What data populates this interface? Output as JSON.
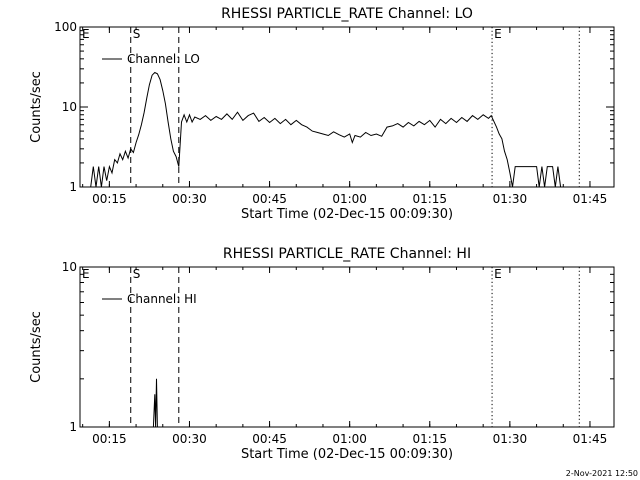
{
  "footer_timestamp": "2-Nov-2021 12:50",
  "chart_data": [
    {
      "type": "line",
      "title": "RHESSI PARTICLE_RATE Channel: LO",
      "xlabel": "Start Time (02-Dec-15 00:09:30)",
      "ylabel": "Counts/sec",
      "y_scale": "log",
      "ylim": [
        1,
        100
      ],
      "xlim": [
        "00:09:30",
        "01:49:30"
      ],
      "x_ticks": [
        "00:15",
        "00:30",
        "00:45",
        "01:00",
        "01:15",
        "01:30",
        "01:45"
      ],
      "y_ticks": [
        "1",
        "10",
        "100"
      ],
      "legend": {
        "label": "Channel: LO",
        "placement": "top-left"
      },
      "markers": [
        {
          "label": "E",
          "x": "00:09:30",
          "style": "none"
        },
        {
          "label": "S",
          "x": "00:19:00",
          "style": "dashed"
        },
        {
          "label": "",
          "x": "00:28:00",
          "style": "dashed"
        },
        {
          "label": "E",
          "x": "01:26:40",
          "style": "dotted"
        },
        {
          "label": "",
          "x": "01:43:00",
          "style": "dotted"
        }
      ],
      "series": [
        {
          "name": "Channel: LO",
          "points": [
            [
              "00:11:30",
              1
            ],
            [
              "00:12:00",
              1.8
            ],
            [
              "00:12:30",
              1
            ],
            [
              "00:13:00",
              1.8
            ],
            [
              "00:13:30",
              1
            ],
            [
              "00:14:00",
              1.8
            ],
            [
              "00:14:30",
              1.2
            ],
            [
              "00:15:00",
              1.8
            ],
            [
              "00:15:30",
              1.5
            ],
            [
              "00:16:00",
              2.2
            ],
            [
              "00:16:30",
              2
            ],
            [
              "00:17:00",
              2.6
            ],
            [
              "00:17:30",
              2.2
            ],
            [
              "00:18:00",
              2.8
            ],
            [
              "00:18:30",
              2.3
            ],
            [
              "00:19:00",
              3
            ],
            [
              "00:19:30",
              2.7
            ],
            [
              "00:20:00",
              3.6
            ],
            [
              "00:20:30",
              4.5
            ],
            [
              "00:21:00",
              6
            ],
            [
              "00:21:30",
              8.5
            ],
            [
              "00:22:00",
              13
            ],
            [
              "00:22:30",
              19
            ],
            [
              "00:23:00",
              25
            ],
            [
              "00:23:30",
              27
            ],
            [
              "00:24:00",
              26
            ],
            [
              "00:24:30",
              22
            ],
            [
              "00:25:00",
              16
            ],
            [
              "00:25:30",
              11
            ],
            [
              "00:26:00",
              6.5
            ],
            [
              "00:26:30",
              4
            ],
            [
              "00:27:00",
              2.8
            ],
            [
              "00:27:30",
              2.4
            ],
            [
              "00:28:00",
              1.8
            ],
            [
              "00:28:30",
              6.5
            ],
            [
              "00:29:00",
              8
            ],
            [
              "00:29:30",
              6.5
            ],
            [
              "00:30:00",
              8
            ],
            [
              "00:30:30",
              6.5
            ],
            [
              "00:31:00",
              7.5
            ],
            [
              "00:32:00",
              7
            ],
            [
              "00:33:00",
              7.8
            ],
            [
              "00:34:00",
              6.8
            ],
            [
              "00:35:00",
              7.6
            ],
            [
              "00:36:00",
              7
            ],
            [
              "00:37:00",
              8.2
            ],
            [
              "00:38:00",
              7
            ],
            [
              "00:39:00",
              8.6
            ],
            [
              "00:40:00",
              6.8
            ],
            [
              "00:41:00",
              7.8
            ],
            [
              "00:42:00",
              8.4
            ],
            [
              "00:43:00",
              6.6
            ],
            [
              "00:44:00",
              7.4
            ],
            [
              "00:45:00",
              6.4
            ],
            [
              "00:46:00",
              7.2
            ],
            [
              "00:47:00",
              6.2
            ],
            [
              "00:48:00",
              7
            ],
            [
              "00:49:00",
              6
            ],
            [
              "00:50:00",
              6.8
            ],
            [
              "00:51:00",
              6
            ],
            [
              "00:52:00",
              5.6
            ],
            [
              "00:53:00",
              5
            ],
            [
              "00:54:00",
              4.8
            ],
            [
              "00:55:00",
              4.6
            ],
            [
              "00:56:00",
              4.4
            ],
            [
              "00:57:00",
              4.9
            ],
            [
              "00:58:00",
              4.5
            ],
            [
              "00:59:00",
              4.2
            ],
            [
              "01:00:00",
              4.6
            ],
            [
              "01:00:30",
              3.6
            ],
            [
              "01:01:00",
              4.4
            ],
            [
              "01:02:00",
              4.2
            ],
            [
              "01:03:00",
              4.8
            ],
            [
              "01:04:00",
              4.4
            ],
            [
              "01:05:00",
              4.6
            ],
            [
              "01:06:00",
              4.3
            ],
            [
              "01:07:00",
              5.6
            ],
            [
              "01:08:00",
              5.8
            ],
            [
              "01:09:00",
              6.2
            ],
            [
              "01:10:00",
              5.6
            ],
            [
              "01:11:00",
              6.4
            ],
            [
              "01:12:00",
              5.8
            ],
            [
              "01:13:00",
              6.6
            ],
            [
              "01:14:00",
              6
            ],
            [
              "01:15:00",
              6.8
            ],
            [
              "01:16:00",
              5.6
            ],
            [
              "01:17:00",
              7
            ],
            [
              "01:18:00",
              6.2
            ],
            [
              "01:19:00",
              7.2
            ],
            [
              "01:20:00",
              6.4
            ],
            [
              "01:21:00",
              7.4
            ],
            [
              "01:22:00",
              6.6
            ],
            [
              "01:23:00",
              7.8
            ],
            [
              "01:24:00",
              7
            ],
            [
              "01:25:00",
              8
            ],
            [
              "01:26:00",
              7.2
            ],
            [
              "01:26:30",
              7.8
            ],
            [
              "01:27:00",
              6.6
            ],
            [
              "01:27:30",
              5.6
            ],
            [
              "01:28:00",
              4.6
            ],
            [
              "01:28:30",
              4
            ],
            [
              "01:29:00",
              2.8
            ],
            [
              "01:29:30",
              2.2
            ],
            [
              "01:30:00",
              1.5
            ],
            [
              "01:30:30",
              1
            ],
            [
              "01:31:00",
              1.8
            ],
            [
              "01:31:30",
              1.8
            ],
            [
              "01:35:00",
              1.8
            ],
            [
              "01:35:30",
              1
            ],
            [
              "01:36:00",
              1.8
            ],
            [
              "01:36:30",
              1
            ],
            [
              "01:37:00",
              1.8
            ],
            [
              "01:38:00",
              1.8
            ],
            [
              "01:38:30",
              1
            ],
            [
              "01:39:00",
              1.8
            ],
            [
              "01:39:30",
              1
            ]
          ]
        }
      ]
    },
    {
      "type": "line",
      "title": "RHESSI PARTICLE_RATE Channel: HI",
      "xlabel": "Start Time (02-Dec-15 00:09:30)",
      "ylabel": "Counts/sec",
      "y_scale": "log",
      "ylim": [
        1,
        10
      ],
      "xlim": [
        "00:09:30",
        "01:49:30"
      ],
      "x_ticks": [
        "00:15",
        "00:30",
        "00:45",
        "01:00",
        "01:15",
        "01:30",
        "01:45"
      ],
      "y_ticks": [
        "1",
        "10"
      ],
      "legend": {
        "label": "Channel: HI",
        "placement": "top-left"
      },
      "markers": [
        {
          "label": "E",
          "x": "00:09:30",
          "style": "none"
        },
        {
          "label": "S",
          "x": "00:19:00",
          "style": "dashed"
        },
        {
          "label": "",
          "x": "00:28:00",
          "style": "dashed"
        },
        {
          "label": "E",
          "x": "01:26:40",
          "style": "dotted"
        },
        {
          "label": "",
          "x": "01:43:00",
          "style": "dotted"
        }
      ],
      "series": [
        {
          "name": "Channel: HI",
          "points": [
            [
              "00:23:15",
              1
            ],
            [
              "00:23:30",
              1.6
            ],
            [
              "00:23:40",
              1
            ],
            [
              "00:23:50",
              2
            ],
            [
              "00:24:00",
              1
            ]
          ]
        }
      ]
    }
  ]
}
